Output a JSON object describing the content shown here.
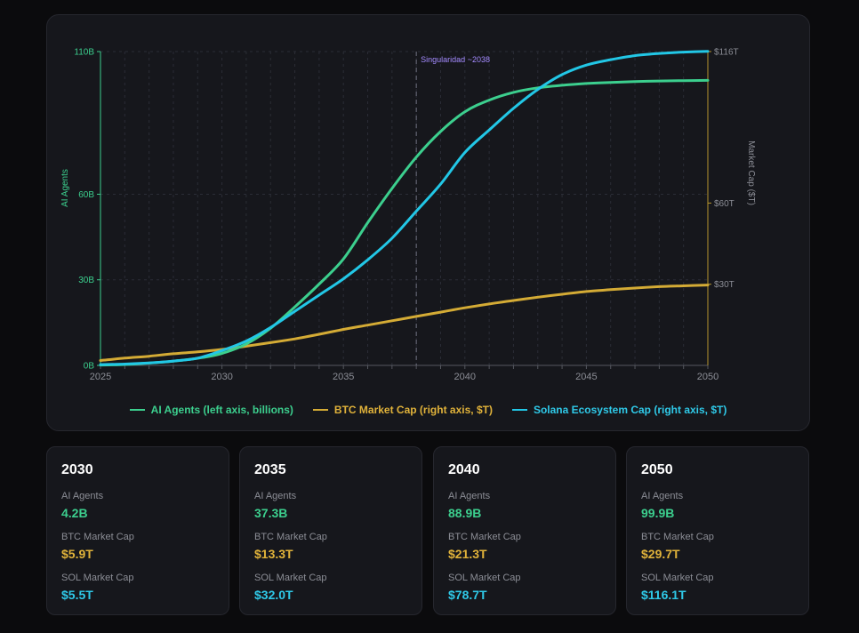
{
  "colors": {
    "agents": "#3ccf8e",
    "btc": "#d4ab35",
    "sol": "#22c7e6",
    "marker": "#a48bff",
    "grid": "#2b2d36",
    "tick": "#8c8e96",
    "right_axis": "#b8962e"
  },
  "chart_data": {
    "type": "line",
    "title": "",
    "x_ticks": [
      "2025",
      "2030",
      "2035",
      "2040",
      "2045",
      "2050"
    ],
    "xlim": [
      2025,
      2050
    ],
    "left_axis": {
      "label": "AI Agents",
      "ticks": [
        "0B",
        "30B",
        "60B",
        "110B"
      ],
      "tick_values": [
        0,
        30,
        60,
        110
      ],
      "ylim": [
        0,
        110
      ]
    },
    "right_axis": {
      "label": "Market Cap ($T)",
      "ticks": [
        "$30T",
        "$60T",
        "$116T"
      ],
      "tick_values": [
        30,
        60,
        116
      ],
      "ylim": [
        0,
        116
      ]
    },
    "annotation": {
      "label": "Singularidad ~2038",
      "x": 2038
    },
    "series": [
      {
        "name": "AI Agents (left axis, billions)",
        "axis": "left",
        "key": "agents",
        "x": [
          2025,
          2026,
          2027,
          2028,
          2029,
          2030,
          2031,
          2032,
          2033,
          2034,
          2035,
          2036,
          2037,
          2038,
          2039,
          2040,
          2041,
          2042,
          2043,
          2044,
          2045,
          2046,
          2047,
          2048,
          2049,
          2050
        ],
        "y": [
          0.1,
          0.3,
          0.8,
          1.5,
          2.5,
          4.2,
          7.5,
          13,
          20.5,
          28.5,
          37.3,
          50,
          62,
          73,
          82,
          88.9,
          93,
          95.7,
          97.3,
          98.2,
          98.8,
          99.2,
          99.5,
          99.7,
          99.8,
          99.9
        ]
      },
      {
        "name": "BTC Market Cap (right axis, $T)",
        "axis": "right",
        "key": "btc",
        "x": [
          2025,
          2026,
          2027,
          2028,
          2029,
          2030,
          2031,
          2032,
          2033,
          2034,
          2035,
          2036,
          2037,
          2038,
          2039,
          2040,
          2041,
          2042,
          2043,
          2044,
          2045,
          2046,
          2047,
          2048,
          2049,
          2050
        ],
        "y": [
          1.8,
          2.7,
          3.4,
          4.3,
          5.0,
          5.9,
          7.1,
          8.4,
          9.8,
          11.5,
          13.3,
          14.9,
          16.5,
          18.1,
          19.7,
          21.3,
          22.7,
          24.0,
          25.2,
          26.3,
          27.3,
          28.0,
          28.6,
          29.1,
          29.4,
          29.7
        ]
      },
      {
        "name": "Solana Ecosystem Cap (right axis, $T)",
        "axis": "right",
        "key": "sol",
        "x": [
          2025,
          2026,
          2027,
          2028,
          2029,
          2030,
          2031,
          2032,
          2033,
          2034,
          2035,
          2036,
          2037,
          2038,
          2039,
          2040,
          2041,
          2042,
          2043,
          2044,
          2045,
          2046,
          2047,
          2048,
          2049,
          2050
        ],
        "y": [
          0.3,
          0.5,
          0.9,
          1.6,
          2.7,
          5.5,
          9.0,
          14.0,
          20.0,
          26.0,
          32.0,
          39.0,
          47.0,
          57.0,
          67.0,
          78.7,
          87.0,
          95.0,
          102.0,
          107.5,
          111.0,
          113.0,
          114.5,
          115.3,
          115.8,
          116.1
        ]
      }
    ]
  },
  "cards": [
    {
      "year": "2030",
      "agents_label": "AI Agents",
      "agents": "4.2B",
      "btc_label": "BTC Market Cap",
      "btc": "$5.9T",
      "sol_label": "SOL Market Cap",
      "sol": "$5.5T"
    },
    {
      "year": "2035",
      "agents_label": "AI Agents",
      "agents": "37.3B",
      "btc_label": "BTC Market Cap",
      "btc": "$13.3T",
      "sol_label": "SOL Market Cap",
      "sol": "$32.0T"
    },
    {
      "year": "2040",
      "agents_label": "AI Agents",
      "agents": "88.9B",
      "btc_label": "BTC Market Cap",
      "btc": "$21.3T",
      "sol_label": "SOL Market Cap",
      "sol": "$78.7T"
    },
    {
      "year": "2050",
      "agents_label": "AI Agents",
      "agents": "99.9B",
      "btc_label": "BTC Market Cap",
      "btc": "$29.7T",
      "sol_label": "SOL Market Cap",
      "sol": "$116.1T"
    }
  ]
}
